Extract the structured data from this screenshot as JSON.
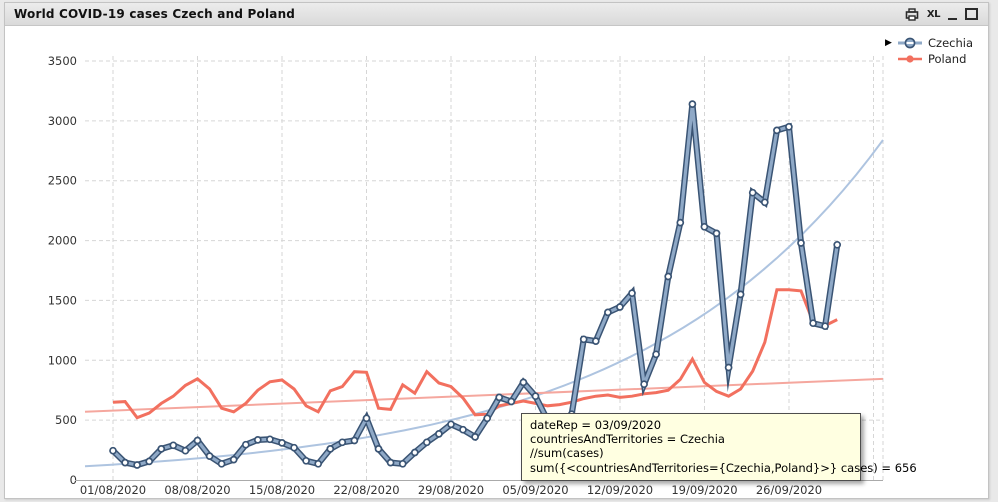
{
  "window": {
    "title": "World COVID-19 cases Czech and Poland"
  },
  "titlebar_icons": {
    "print": "print",
    "excel": "XL",
    "minimize": "minimize",
    "maximize": "maximize"
  },
  "legend": {
    "active_marker": "▶",
    "items": [
      "Czechia",
      "Poland"
    ]
  },
  "tooltip": {
    "lines": [
      "dateRep = 03/09/2020",
      "countriesAndTerritories = Czechia",
      "//sum(cases)",
      "sum({<countriesAndTerritories={Czechia,Poland}>} cases) = 656"
    ]
  },
  "chart_data": {
    "type": "line",
    "title": "World COVID-19 cases Czech and Poland",
    "x_start_date": "01/08/2020",
    "x_end_date": "30/09/2020",
    "x_tick_labels": [
      "01/08/2020",
      "08/08/2020",
      "15/08/2020",
      "22/08/2020",
      "29/08/2020",
      "05/09/2020",
      "12/09/2020",
      "19/09/2020",
      "26/09/2020"
    ],
    "y_ticks": [
      0,
      500,
      1000,
      1500,
      2000,
      2500,
      3000,
      3500
    ],
    "ylim": [
      0,
      3700
    ],
    "grid": "dashed",
    "legend_position": "top-right",
    "series": [
      {
        "name": "Czechia",
        "color": "#8fa9c7",
        "outline_color": "#3a5474",
        "marker": "circle",
        "values": [
          245,
          145,
          125,
          155,
          260,
          290,
          245,
          330,
          200,
          135,
          170,
          295,
          335,
          340,
          310,
          270,
          160,
          135,
          260,
          315,
          330,
          515,
          260,
          145,
          135,
          230,
          315,
          385,
          465,
          420,
          360,
          515,
          690,
          656,
          815,
          700,
          500,
          420,
          550,
          1175,
          1160,
          1400,
          1445,
          1560,
          800,
          1050,
          1700,
          2150,
          3140,
          2115,
          2060,
          940,
          1550,
          2400,
          2320,
          2920,
          2950,
          1980,
          1310,
          1285,
          1965
        ]
      },
      {
        "name": "Poland",
        "color": "#f2705f",
        "marker": "dot",
        "values": [
          650,
          655,
          520,
          560,
          640,
          700,
          790,
          845,
          760,
          600,
          570,
          640,
          750,
          820,
          835,
          760,
          620,
          570,
          745,
          780,
          905,
          900,
          600,
          590,
          795,
          725,
          905,
          810,
          780,
          685,
          545,
          550,
          620,
          640,
          660,
          640,
          620,
          630,
          650,
          680,
          700,
          710,
          690,
          700,
          720,
          730,
          750,
          840,
          1010,
          815,
          740,
          700,
          760,
          910,
          1150,
          1590,
          1590,
          1580,
          1320,
          1290,
          1340
        ]
      }
    ],
    "trendlines": [
      {
        "series": "Czechia",
        "type": "exponential",
        "color": "#aec4e0",
        "start_value": 115,
        "end_value": 2840
      },
      {
        "series": "Poland",
        "type": "linear",
        "color": "#f5a79e",
        "start_value": 570,
        "end_value": 845
      }
    ],
    "annotated_point": {
      "series": "Czechia",
      "date": "03/09/2020",
      "value": 656
    }
  },
  "ui_colors": {
    "grid": "#d6d6d6",
    "axis": "#aaaaaa",
    "tick_text": "#333333",
    "tooltip_bg": "#ffffe1",
    "titlebar_bg": "#e2e2e2"
  }
}
